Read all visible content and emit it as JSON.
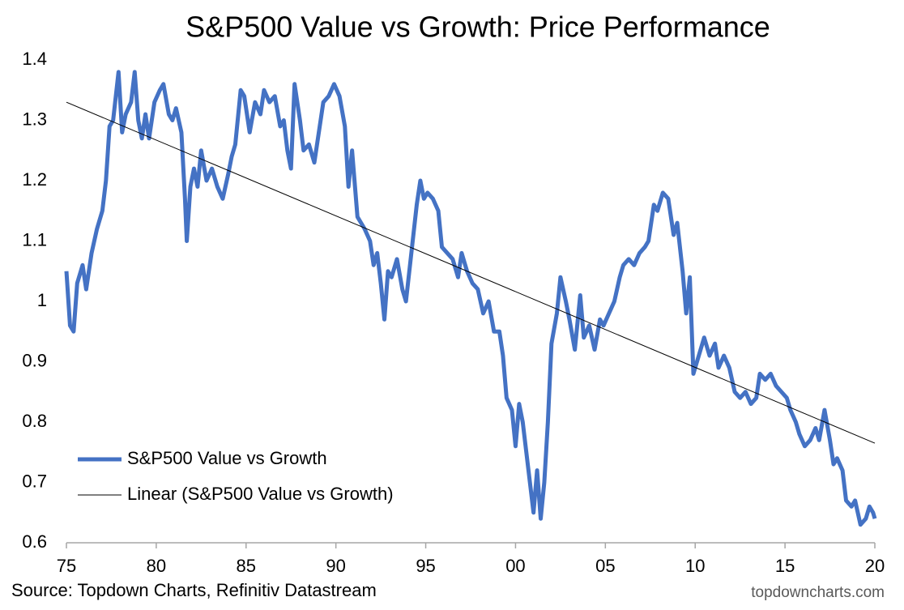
{
  "chart_data": {
    "type": "line",
    "title": "S&P500 Value vs Growth: Price Performance",
    "source": "Source: Topdown Charts, Refinitiv Datastream",
    "watermark": "topdowncharts.com",
    "x": [
      1975.0,
      1975.2,
      1975.4,
      1975.6,
      1975.9,
      1976.1,
      1976.4,
      1976.7,
      1977.0,
      1977.2,
      1977.4,
      1977.6,
      1977.9,
      1978.1,
      1978.3,
      1978.6,
      1978.8,
      1979.0,
      1979.2,
      1979.4,
      1979.6,
      1979.9,
      1980.2,
      1980.4,
      1980.7,
      1980.9,
      1981.1,
      1981.4,
      1981.6,
      1981.7,
      1981.9,
      1982.1,
      1982.3,
      1982.5,
      1982.8,
      1983.1,
      1983.4,
      1983.7,
      1984.0,
      1984.2,
      1984.4,
      1984.7,
      1984.9,
      1985.2,
      1985.5,
      1985.8,
      1986.0,
      1986.3,
      1986.6,
      1986.9,
      1987.1,
      1987.3,
      1987.5,
      1987.7,
      1988.0,
      1988.2,
      1988.5,
      1988.8,
      1989.1,
      1989.3,
      1989.6,
      1989.9,
      1990.2,
      1990.5,
      1990.7,
      1990.9,
      1991.2,
      1991.4,
      1991.6,
      1991.9,
      1992.1,
      1992.3,
      1992.5,
      1992.7,
      1992.9,
      1993.1,
      1993.4,
      1993.7,
      1993.9,
      1994.2,
      1994.5,
      1994.7,
      1994.9,
      1995.1,
      1995.4,
      1995.7,
      1995.9,
      1996.2,
      1996.5,
      1996.8,
      1997.0,
      1997.3,
      1997.6,
      1997.9,
      1998.2,
      1998.5,
      1998.8,
      1999.1,
      1999.3,
      1999.5,
      1999.8,
      2000.0,
      2000.2,
      2000.4,
      2000.6,
      2000.8,
      2001.0,
      2001.2,
      2001.4,
      2001.6,
      2001.8,
      2002.0,
      2002.3,
      2002.5,
      2002.8,
      2003.0,
      2003.3,
      2003.6,
      2003.8,
      2004.1,
      2004.4,
      2004.7,
      2004.9,
      2005.2,
      2005.5,
      2005.8,
      2006.0,
      2006.3,
      2006.6,
      2006.9,
      2007.2,
      2007.4,
      2007.7,
      2007.9,
      2008.2,
      2008.5,
      2008.8,
      2009.0,
      2009.3,
      2009.5,
      2009.7,
      2009.9,
      2010.2,
      2010.5,
      2010.8,
      2011.1,
      2011.3,
      2011.6,
      2011.9,
      2012.2,
      2012.5,
      2012.8,
      2013.1,
      2013.4,
      2013.6,
      2013.9,
      2014.2,
      2014.5,
      2014.8,
      2015.1,
      2015.3,
      2015.6,
      2015.8,
      2016.1,
      2016.4,
      2016.7,
      2016.9,
      2017.2,
      2017.5,
      2017.7,
      2017.9,
      2018.2,
      2018.4,
      2018.7,
      2018.9,
      2019.2,
      2019.5,
      2019.7,
      2019.9,
      2020.0
    ],
    "series": [
      {
        "name": "S&P500 Value vs Growth",
        "color": "#4472c4",
        "width": 5,
        "values": [
          1.05,
          0.96,
          0.95,
          1.03,
          1.06,
          1.02,
          1.08,
          1.12,
          1.15,
          1.2,
          1.29,
          1.3,
          1.38,
          1.28,
          1.31,
          1.33,
          1.38,
          1.3,
          1.27,
          1.31,
          1.27,
          1.33,
          1.35,
          1.36,
          1.31,
          1.3,
          1.32,
          1.28,
          1.17,
          1.1,
          1.19,
          1.22,
          1.19,
          1.25,
          1.2,
          1.22,
          1.19,
          1.17,
          1.21,
          1.24,
          1.26,
          1.35,
          1.34,
          1.28,
          1.33,
          1.31,
          1.35,
          1.33,
          1.34,
          1.29,
          1.3,
          1.25,
          1.22,
          1.36,
          1.3,
          1.25,
          1.26,
          1.23,
          1.29,
          1.33,
          1.34,
          1.36,
          1.34,
          1.29,
          1.19,
          1.25,
          1.14,
          1.13,
          1.12,
          1.1,
          1.06,
          1.08,
          1.03,
          0.97,
          1.05,
          1.04,
          1.07,
          1.02,
          1.0,
          1.08,
          1.16,
          1.2,
          1.17,
          1.18,
          1.17,
          1.15,
          1.09,
          1.08,
          1.07,
          1.04,
          1.08,
          1.05,
          1.03,
          1.02,
          0.98,
          1.0,
          0.95,
          0.95,
          0.91,
          0.84,
          0.82,
          0.76,
          0.83,
          0.8,
          0.75,
          0.7,
          0.65,
          0.72,
          0.64,
          0.7,
          0.8,
          0.93,
          0.98,
          1.04,
          1.0,
          0.97,
          0.92,
          1.01,
          0.94,
          0.96,
          0.92,
          0.97,
          0.96,
          0.98,
          1.0,
          1.04,
          1.06,
          1.07,
          1.06,
          1.08,
          1.09,
          1.1,
          1.16,
          1.15,
          1.18,
          1.17,
          1.11,
          1.13,
          1.05,
          0.98,
          1.04,
          0.88,
          0.91,
          0.94,
          0.91,
          0.93,
          0.89,
          0.91,
          0.89,
          0.85,
          0.84,
          0.85,
          0.83,
          0.84,
          0.88,
          0.87,
          0.88,
          0.86,
          0.85,
          0.84,
          0.82,
          0.8,
          0.78,
          0.76,
          0.77,
          0.79,
          0.77,
          0.82,
          0.77,
          0.73,
          0.74,
          0.72,
          0.67,
          0.66,
          0.67,
          0.63,
          0.64,
          0.66,
          0.65,
          0.64
        ]
      },
      {
        "name": "Linear (S&P500 Value vs Growth)",
        "color": "#000000",
        "width": 1,
        "x": [
          1975,
          2020
        ],
        "values": [
          1.33,
          0.765
        ]
      }
    ],
    "xlim": [
      1975,
      2020
    ],
    "xticks": [
      {
        "value": 1975,
        "label": "75"
      },
      {
        "value": 1980,
        "label": "80"
      },
      {
        "value": 1985,
        "label": "85"
      },
      {
        "value": 1990,
        "label": "90"
      },
      {
        "value": 1995,
        "label": "95"
      },
      {
        "value": 2000,
        "label": "00"
      },
      {
        "value": 2005,
        "label": "05"
      },
      {
        "value": 2010,
        "label": "10"
      },
      {
        "value": 2015,
        "label": "15"
      },
      {
        "value": 2020,
        "label": "20"
      }
    ],
    "ylim": [
      0.6,
      1.4
    ],
    "yticks": [
      0.6,
      0.7,
      0.8,
      0.9,
      1,
      1.1,
      1.2,
      1.3,
      1.4
    ],
    "legend": "lower left"
  }
}
